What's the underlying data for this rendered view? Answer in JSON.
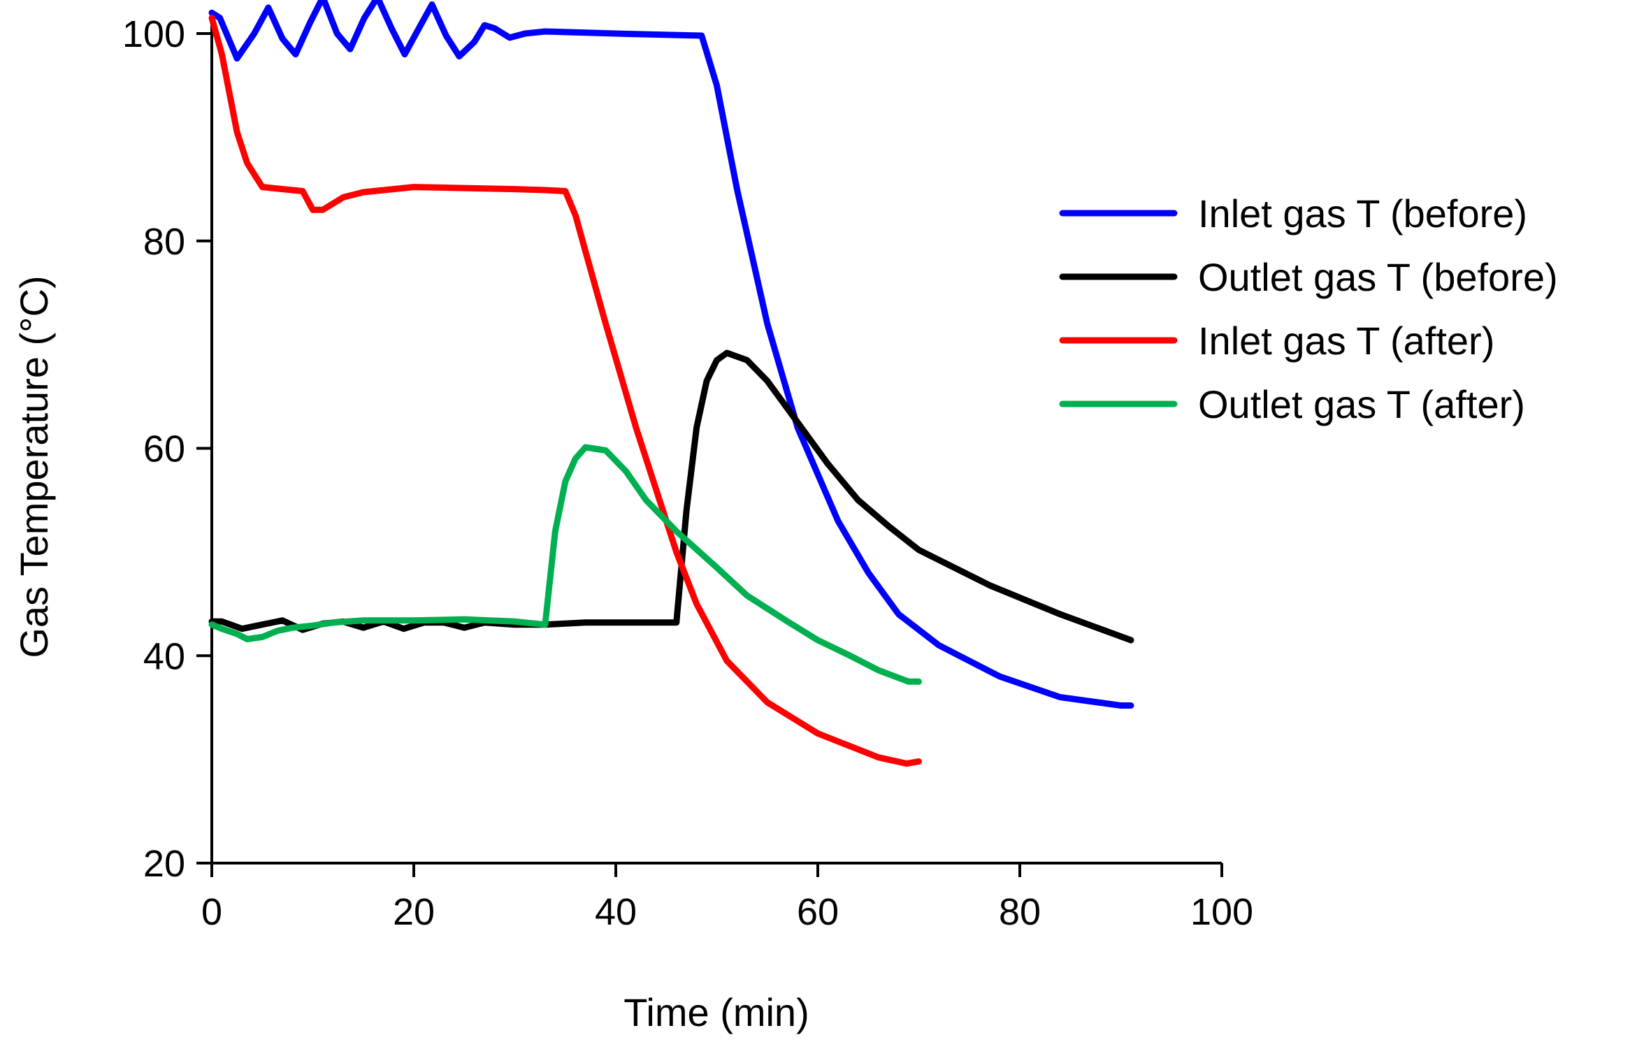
{
  "chart_data": {
    "type": "line",
    "title": "",
    "xlabel": "Time (min)",
    "ylabel": "Gas Temperature (°C)",
    "xlim": [
      0,
      100
    ],
    "ylim": [
      20,
      100
    ],
    "xticks": [
      0,
      20,
      40,
      60,
      80,
      100
    ],
    "yticks": [
      20,
      40,
      60,
      80,
      100
    ],
    "x_tick_labels": [
      "0",
      "20",
      "40",
      "60",
      "80",
      "100"
    ],
    "y_tick_labels": [
      "20",
      "40",
      "60",
      "80",
      "100"
    ],
    "grid": false,
    "legend_position": "right",
    "series": [
      {
        "name": "Inlet gas T (before)",
        "color": "#0000ff",
        "x": [
          0,
          0.8,
          2.5,
          4.2,
          5.6,
          7,
          8.3,
          9.7,
          11,
          12.4,
          13.7,
          15.1,
          16.4,
          17.8,
          19.1,
          20.5,
          21.8,
          23.2,
          24.5,
          26,
          27,
          28,
          29.5,
          31,
          33,
          40,
          48.5,
          50,
          52,
          55,
          58,
          62,
          65,
          68,
          72,
          78,
          84,
          90,
          91
        ],
        "y": [
          102,
          101.5,
          97.6,
          100,
          102.5,
          99.5,
          98,
          101,
          103.5,
          100,
          98.5,
          101.5,
          103.5,
          100.5,
          98,
          100.5,
          102.8,
          99.8,
          97.8,
          99.2,
          100.8,
          100.5,
          99.6,
          100,
          100.2,
          100,
          99.8,
          95,
          85,
          72,
          62,
          53,
          48,
          44,
          41,
          38,
          36,
          35.2,
          35.2
        ]
      },
      {
        "name": "Outlet gas T (before)",
        "color": "#000000",
        "x": [
          0,
          1,
          3,
          5,
          7,
          9,
          11,
          13,
          15,
          17,
          19,
          21,
          23,
          25,
          27,
          30,
          33,
          37,
          42,
          45,
          46,
          47,
          48,
          49,
          50,
          51,
          53,
          55,
          58,
          61,
          64,
          67,
          70,
          77,
          84,
          91
        ],
        "y": [
          43.3,
          43.3,
          42.6,
          43,
          43.4,
          42.5,
          43.1,
          43.3,
          42.7,
          43.3,
          42.6,
          43.2,
          43.2,
          42.7,
          43.2,
          43,
          43,
          43.2,
          43.2,
          43.2,
          43.2,
          54,
          62,
          66.5,
          68.5,
          69.2,
          68.5,
          66.5,
          62.5,
          58.5,
          55,
          52.5,
          50.2,
          46.8,
          44,
          41.5
        ]
      },
      {
        "name": "Inlet gas T (after)",
        "color": "#ff0000",
        "x": [
          0,
          1,
          2.5,
          3.5,
          5,
          7,
          9,
          10,
          11,
          13,
          15,
          20,
          25,
          30,
          33,
          35,
          36,
          37,
          39,
          42,
          44,
          46,
          48,
          51,
          55,
          60,
          66,
          68.8,
          70
        ],
        "y": [
          101.5,
          98,
          90.5,
          87.5,
          85.2,
          85,
          84.8,
          83,
          83,
          84.2,
          84.7,
          85.2,
          85.1,
          85,
          84.9,
          84.8,
          82.5,
          79,
          72,
          62,
          56,
          50,
          45,
          39.5,
          35.5,
          32.5,
          30.2,
          29.6,
          29.8
        ]
      },
      {
        "name": "Outlet gas T (after)",
        "color": "#00b050",
        "x": [
          0,
          1,
          2.5,
          3.5,
          5,
          6.5,
          8,
          10,
          12,
          15,
          20,
          25,
          30,
          33,
          34,
          35,
          36,
          37,
          39,
          41,
          43,
          46,
          50,
          53,
          57,
          60,
          63,
          66,
          69,
          70
        ],
        "y": [
          43,
          42.6,
          42.1,
          41.6,
          41.8,
          42.4,
          42.7,
          42.9,
          43.2,
          43.4,
          43.4,
          43.5,
          43.3,
          43,
          52,
          56.8,
          59,
          60.1,
          59.8,
          57.8,
          55,
          52,
          48.5,
          45.8,
          43.3,
          41.5,
          40.1,
          38.6,
          37.5,
          37.5
        ]
      }
    ]
  }
}
